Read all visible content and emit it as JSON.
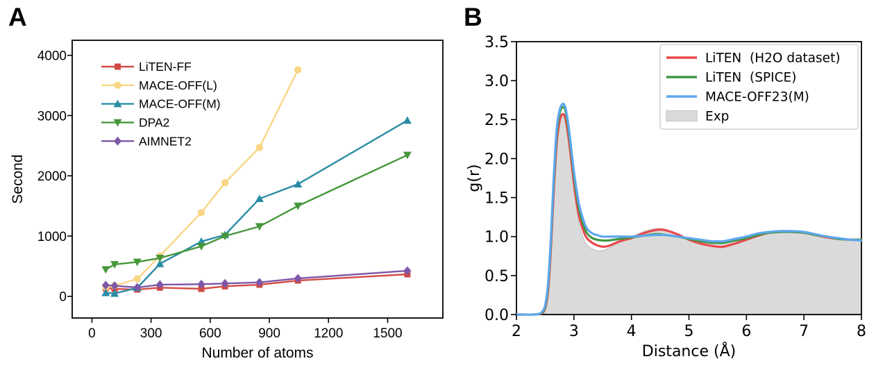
{
  "panels": {
    "a": {
      "label": "A"
    },
    "b": {
      "label": "B"
    }
  },
  "chart_data": [
    {
      "id": "A",
      "type": "line",
      "title": "",
      "xlabel": "Number of atoms",
      "ylabel": "Second",
      "xlim": [
        -100,
        1780
      ],
      "ylim": [
        -360,
        4250
      ],
      "grid": false,
      "legend_position": "upper-left, no frame",
      "xticks": [
        0,
        300,
        600,
        900,
        1200,
        1500
      ],
      "xtick_labels": [
        "0",
        "300",
        "600",
        "900",
        "1200",
        "1500"
      ],
      "yticks": [
        0,
        1000,
        2000,
        3000,
        4000
      ],
      "ytick_labels": [
        "0",
        "1000",
        "2000",
        "3000",
        "4000"
      ],
      "x": [
        70,
        115,
        230,
        345,
        555,
        675,
        850,
        1045,
        1600
      ],
      "series": [
        {
          "name": "LiTEN-FF",
          "color": "#d24b45",
          "marker": "square",
          "values": [
            135,
            124,
            112,
            144,
            124,
            166,
            193,
            262,
            366
          ]
        },
        {
          "name": "MACE-OFF(L)",
          "color": "#f8d684",
          "marker": "circle",
          "values": [
            150,
            175,
            290,
            670,
            1390,
            1885,
            2470,
            3760,
            null
          ]
        },
        {
          "name": "MACE-OFF(M)",
          "color": "#2a8ba5",
          "marker": "triangle-up",
          "values": [
            58,
            47,
            140,
            540,
            910,
            1020,
            1620,
            1862,
            2920
          ]
        },
        {
          "name": "DPA2",
          "color": "#46973a",
          "marker": "triangle-down",
          "values": [
            445,
            530,
            570,
            635,
            830,
            1000,
            1160,
            1500,
            2345
          ]
        },
        {
          "name": "AIMNET2",
          "color": "#7e57a8",
          "marker": "diamond",
          "values": [
            185,
            174,
            147,
            193,
            201,
            213,
            231,
            297,
            424
          ]
        }
      ]
    },
    {
      "id": "B",
      "type": "line",
      "title": "",
      "xlabel": "Distance (Å)",
      "ylabel": "g(r)",
      "xlim": [
        2,
        8
      ],
      "ylim": [
        0,
        3.5
      ],
      "grid": false,
      "legend_position": "upper-right, framed box",
      "xticks": [
        2,
        3,
        4,
        5,
        6,
        7,
        8
      ],
      "xtick_labels": [
        "2",
        "3",
        "4",
        "5",
        "6",
        "7",
        "8"
      ],
      "yticks": [
        0,
        0.5,
        1,
        1.5,
        2,
        2.5,
        3,
        3.5
      ],
      "ytick_labels": [
        "0.0",
        "0.5",
        "1.0",
        "1.5",
        "2.0",
        "2.5",
        "3.0",
        "3.5"
      ],
      "x": [
        2.0,
        2.3,
        2.4,
        2.45,
        2.5,
        2.55,
        2.6,
        2.65,
        2.7,
        2.75,
        2.8,
        2.85,
        2.9,
        2.95,
        3.0,
        3.05,
        3.1,
        3.2,
        3.3,
        3.4,
        3.5,
        3.6,
        3.7,
        3.8,
        3.9,
        4.0,
        4.2,
        4.4,
        4.5,
        4.6,
        4.8,
        5.0,
        5.2,
        5.4,
        5.5,
        5.6,
        5.8,
        6.0,
        6.2,
        6.4,
        6.6,
        6.8,
        7.0,
        7.2,
        7.4,
        7.6,
        7.8,
        8.0
      ],
      "series": [
        {
          "name": "Exp",
          "area": true,
          "color": "#c6c6c6",
          "fill": "#dadada",
          "values": [
            0,
            0,
            0.01,
            0.02,
            0.08,
            0.28,
            0.8,
            1.52,
            2.12,
            2.42,
            2.55,
            2.5,
            2.26,
            1.94,
            1.6,
            1.34,
            1.13,
            0.92,
            0.85,
            0.82,
            0.82,
            0.85,
            0.89,
            0.93,
            0.97,
            1.0,
            1.06,
            1.1,
            1.1,
            1.09,
            1.03,
            0.97,
            0.93,
            0.91,
            0.91,
            0.92,
            0.94,
            0.97,
            1.01,
            1.04,
            1.05,
            1.05,
            1.04,
            1.02,
            1.0,
            0.98,
            0.97,
            0.97
          ]
        },
        {
          "name": "LiTEN  (H2O dataset)",
          "color": "#e9484d",
          "values": [
            0,
            0,
            0.01,
            0.02,
            0.08,
            0.3,
            0.85,
            1.6,
            2.2,
            2.48,
            2.57,
            2.52,
            2.3,
            2.0,
            1.68,
            1.42,
            1.23,
            1.01,
            0.93,
            0.89,
            0.87,
            0.88,
            0.91,
            0.94,
            0.96,
            0.98,
            1.04,
            1.08,
            1.09,
            1.08,
            1.03,
            0.96,
            0.91,
            0.88,
            0.87,
            0.87,
            0.91,
            0.96,
            1.01,
            1.05,
            1.07,
            1.06,
            1.05,
            1.02,
            0.99,
            0.97,
            0.96,
            0.96
          ]
        },
        {
          "name": "LiTEN  (SPICE)",
          "color": "#3f9644",
          "values": [
            0,
            0,
            0.01,
            0.03,
            0.1,
            0.36,
            0.95,
            1.72,
            2.32,
            2.58,
            2.66,
            2.62,
            2.4,
            2.1,
            1.78,
            1.52,
            1.32,
            1.08,
            0.99,
            0.96,
            0.95,
            0.95,
            0.96,
            0.97,
            0.98,
            0.99,
            1.01,
            1.03,
            1.03,
            1.02,
            1.0,
            0.97,
            0.94,
            0.92,
            0.92,
            0.92,
            0.95,
            0.98,
            1.02,
            1.05,
            1.06,
            1.06,
            1.05,
            1.02,
            1.0,
            0.97,
            0.96,
            0.96
          ]
        },
        {
          "name": "MACE-OFF23(M)",
          "color": "#5ea7ee",
          "values": [
            0,
            0,
            0.01,
            0.04,
            0.12,
            0.4,
            1.0,
            1.78,
            2.38,
            2.62,
            2.7,
            2.66,
            2.45,
            2.15,
            1.83,
            1.58,
            1.38,
            1.14,
            1.05,
            1.02,
            1.0,
            1.0,
            1.0,
            1.0,
            1.0,
            1.0,
            1.01,
            1.02,
            1.02,
            1.02,
            1.0,
            0.98,
            0.96,
            0.94,
            0.94,
            0.94,
            0.97,
            1.0,
            1.04,
            1.06,
            1.07,
            1.07,
            1.06,
            1.03,
            1.0,
            0.98,
            0.96,
            0.95
          ]
        }
      ],
      "legend_order": [
        "LiTEN  (H2O dataset)",
        "LiTEN  (SPICE)",
        "MACE-OFF23(M)",
        "Exp"
      ]
    }
  ]
}
